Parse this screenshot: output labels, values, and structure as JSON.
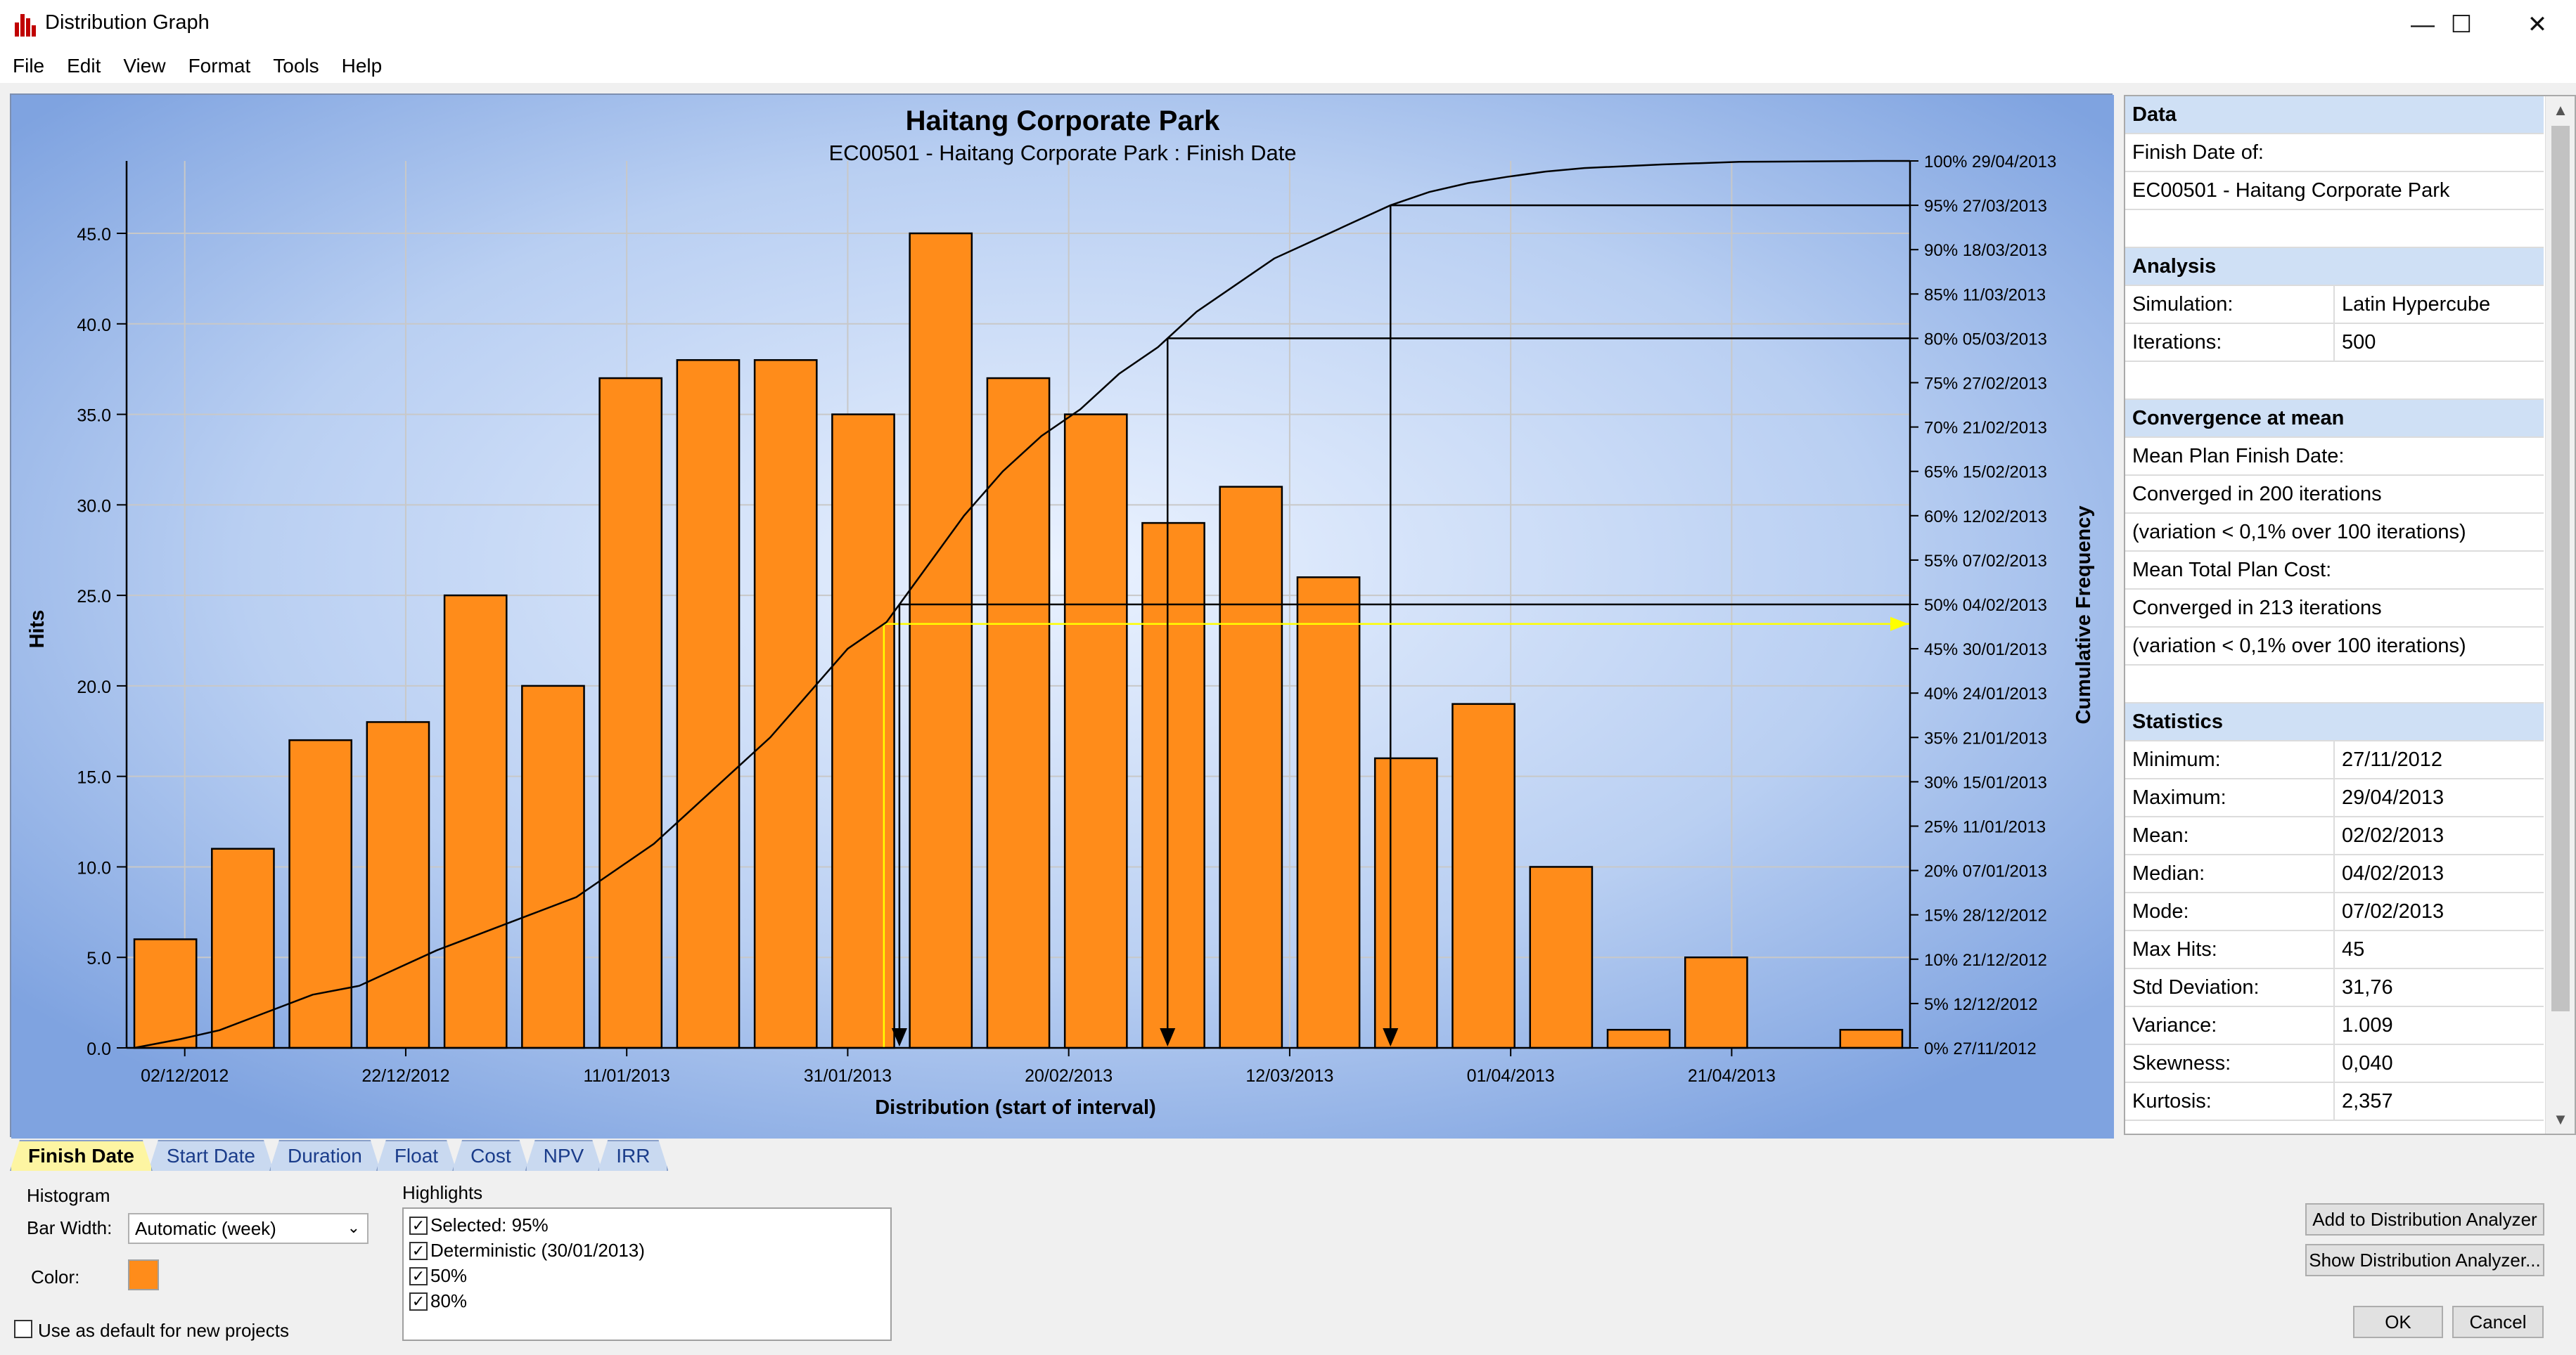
{
  "window": {
    "title": "Distribution Graph",
    "minimize": "—",
    "maximize": "☐",
    "close": "✕"
  },
  "menu": [
    "File",
    "Edit",
    "View",
    "Format",
    "Tools",
    "Help"
  ],
  "chart_data": {
    "type": "bar",
    "title": "Haitang Corporate Park",
    "subtitle": "EC00501 - Haitang Corporate Park : Finish Date",
    "xlabel": "Distribution (start of interval)",
    "ylabel": "Hits",
    "y2label": "Cumulative Frequency",
    "ylim": [
      0,
      49
    ],
    "yticks": [
      "0.0",
      "5.0",
      "10.0",
      "15.0",
      "20.0",
      "25.0",
      "30.0",
      "35.0",
      "40.0",
      "45.0"
    ],
    "xticks": [
      "02/12/2012",
      "22/12/2012",
      "11/01/2013",
      "31/01/2013",
      "20/02/2013",
      "12/03/2013",
      "01/04/2013",
      "21/04/2013"
    ],
    "values": [
      6,
      11,
      17,
      18,
      25,
      20,
      37,
      38,
      38,
      35,
      45,
      37,
      35,
      29,
      31,
      26,
      16,
      19,
      10,
      1,
      5,
      0,
      1
    ],
    "bar_color": "#ff8c1a",
    "y2ticks": [
      {
        "pct": "0%",
        "date": "27/11/2012"
      },
      {
        "pct": "5%",
        "date": "12/12/2012"
      },
      {
        "pct": "10%",
        "date": "21/12/2012"
      },
      {
        "pct": "15%",
        "date": "28/12/2012"
      },
      {
        "pct": "20%",
        "date": "07/01/2013"
      },
      {
        "pct": "25%",
        "date": "11/01/2013"
      },
      {
        "pct": "30%",
        "date": "15/01/2013"
      },
      {
        "pct": "35%",
        "date": "21/01/2013"
      },
      {
        "pct": "40%",
        "date": "24/01/2013"
      },
      {
        "pct": "45%",
        "date": "30/01/2013"
      },
      {
        "pct": "50%",
        "date": "04/02/2013"
      },
      {
        "pct": "55%",
        "date": "07/02/2013"
      },
      {
        "pct": "60%",
        "date": "12/02/2013"
      },
      {
        "pct": "65%",
        "date": "15/02/2013"
      },
      {
        "pct": "70%",
        "date": "21/02/2013"
      },
      {
        "pct": "75%",
        "date": "27/02/2013"
      },
      {
        "pct": "80%",
        "date": "05/03/2013"
      },
      {
        "pct": "85%",
        "date": "11/03/2013"
      },
      {
        "pct": "90%",
        "date": "18/03/2013"
      },
      {
        "pct": "95%",
        "date": "27/03/2013"
      },
      {
        "pct": "100%",
        "date": "29/04/2013"
      }
    ],
    "cumulative": [
      [
        0.1,
        0
      ],
      [
        0.7,
        1
      ],
      [
        1.2,
        2
      ],
      [
        1.8,
        4
      ],
      [
        2.4,
        6
      ],
      [
        3.0,
        7
      ],
      [
        3.5,
        9
      ],
      [
        4.0,
        11
      ],
      [
        4.6,
        13
      ],
      [
        5.2,
        15
      ],
      [
        5.8,
        17
      ],
      [
        6.3,
        20
      ],
      [
        6.8,
        23
      ],
      [
        7.3,
        27
      ],
      [
        7.8,
        31
      ],
      [
        8.3,
        35
      ],
      [
        8.8,
        40
      ],
      [
        9.3,
        45
      ],
      [
        9.8,
        48
      ],
      [
        10.3,
        54
      ],
      [
        10.8,
        60
      ],
      [
        11.3,
        65
      ],
      [
        11.8,
        69
      ],
      [
        12.3,
        72
      ],
      [
        12.8,
        76
      ],
      [
        13.3,
        79
      ],
      [
        13.8,
        83
      ],
      [
        14.3,
        86
      ],
      [
        14.8,
        89
      ],
      [
        15.3,
        91
      ],
      [
        15.8,
        93
      ],
      [
        16.3,
        95
      ],
      [
        16.8,
        96.5
      ],
      [
        17.3,
        97.5
      ],
      [
        17.8,
        98.2
      ],
      [
        18.3,
        98.8
      ],
      [
        18.8,
        99.2
      ],
      [
        19.8,
        99.6
      ],
      [
        20.8,
        99.9
      ],
      [
        22.6,
        100
      ]
    ],
    "highlights": [
      {
        "name": "Selected: 95%",
        "pct": 95,
        "color": "#000000"
      },
      {
        "name": "Deterministic (30/01/2013)",
        "pct": 47.8,
        "color": "#ffff00"
      },
      {
        "name": "50%",
        "pct": 50,
        "color": "#000000"
      },
      {
        "name": "80%",
        "pct": 80,
        "color": "#000000"
      }
    ]
  },
  "data_panel": {
    "sections": [
      {
        "header": "Data",
        "rows": [
          [
            "Finish Date of:"
          ],
          [
            "EC00501 - Haitang Corporate Park"
          ]
        ]
      },
      {
        "header": "Analysis",
        "rows": [
          [
            "Simulation:",
            "Latin Hypercube"
          ],
          [
            "Iterations:",
            "500"
          ]
        ]
      },
      {
        "header": "Convergence at mean",
        "rows": [
          [
            "Mean Plan Finish Date:"
          ],
          [
            "Converged in 200 iterations"
          ],
          [
            "(variation < 0,1% over 100 iterations)"
          ],
          [
            "Mean Total Plan Cost:"
          ],
          [
            "Converged in 213 iterations"
          ],
          [
            "(variation < 0,1% over 100 iterations)"
          ]
        ]
      },
      {
        "header": "Statistics",
        "rows": [
          [
            "Minimum:",
            "27/11/2012"
          ],
          [
            "Maximum:",
            "29/04/2013"
          ],
          [
            "Mean:",
            "02/02/2013"
          ],
          [
            "Median:",
            "04/02/2013"
          ],
          [
            "Mode:",
            "07/02/2013"
          ],
          [
            "Max Hits:",
            "45"
          ],
          [
            "Std Deviation:",
            "31,76"
          ],
          [
            "Variance:",
            "1.009"
          ],
          [
            "Skewness:",
            "0,040"
          ],
          [
            "Kurtosis:",
            "2,357"
          ]
        ]
      }
    ]
  },
  "tabs": [
    "Finish Date",
    "Start Date",
    "Duration",
    "Float",
    "Cost",
    "NPV",
    "IRR"
  ],
  "controls": {
    "histogram_label": "Histogram",
    "bar_width_label": "Bar Width:",
    "bar_width_value": "Automatic (week)",
    "color_label": "Color:",
    "use_default_label": "Use as default for new projects",
    "highlights_label": "Highlights",
    "highlight_items": [
      "Selected: 95%",
      "Deterministic (30/01/2013)",
      "50%",
      "80%"
    ],
    "add_analyzer": "Add to Distribution Analyzer",
    "show_analyzer": "Show Distribution Analyzer...",
    "ok": "OK",
    "cancel": "Cancel"
  }
}
